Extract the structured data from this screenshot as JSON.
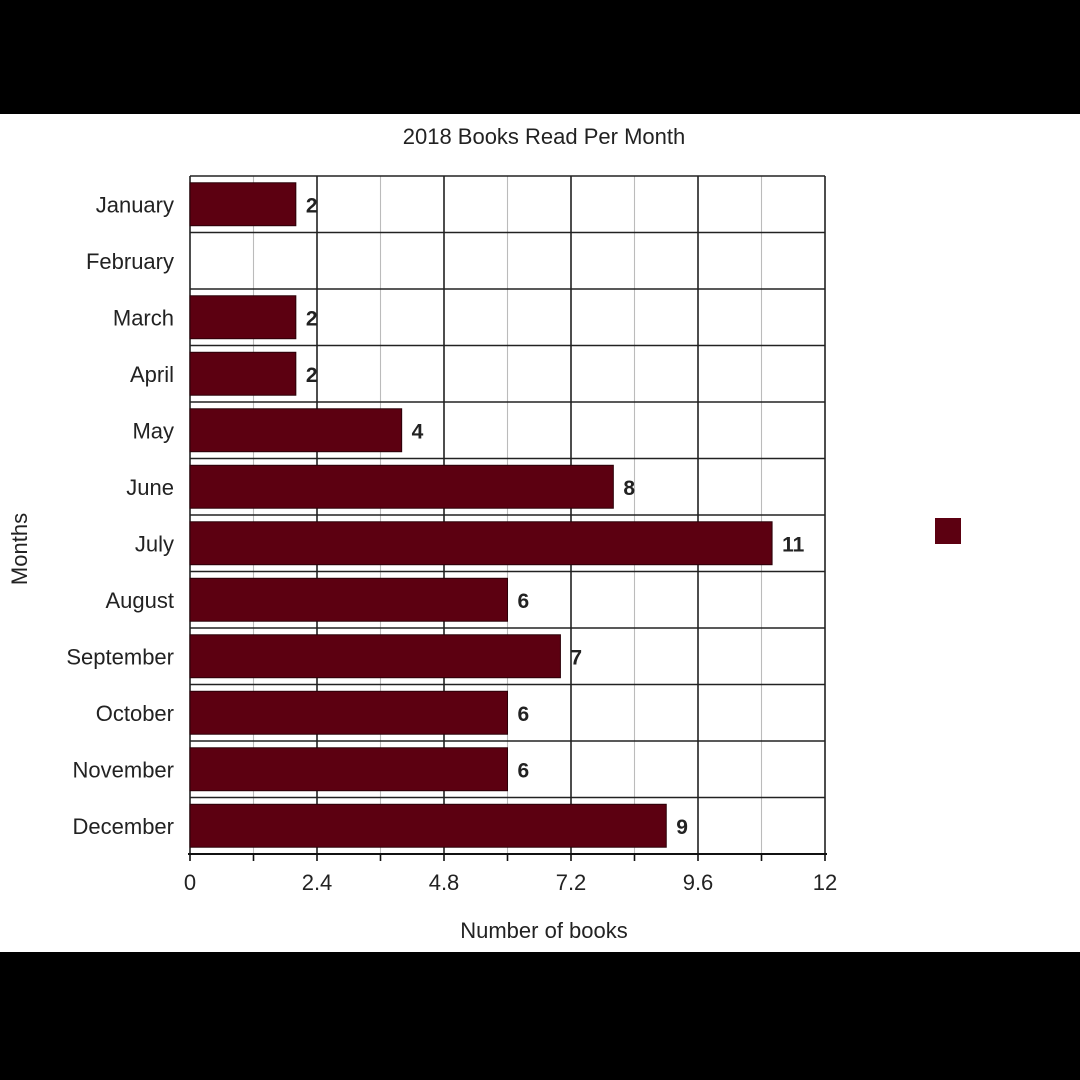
{
  "chart_data": {
    "type": "bar",
    "orientation": "horizontal",
    "title": "2018 Books Read Per Month",
    "xlabel": "Number of books",
    "ylabel": "Months",
    "categories": [
      "January",
      "February",
      "March",
      "April",
      "May",
      "June",
      "July",
      "August",
      "September",
      "October",
      "November",
      "December"
    ],
    "series": [
      {
        "values": [
          2,
          0,
          2,
          2,
          4,
          8,
          11,
          6,
          7,
          6,
          6,
          9
        ],
        "color": "#5c0011"
      }
    ],
    "data_labels": [
      "2",
      "",
      "2",
      "2",
      "4",
      "8",
      "11",
      "6",
      "7",
      "6",
      "6",
      "9"
    ],
    "xlim": [
      0,
      12
    ],
    "xticks": [
      "0",
      "2.4",
      "4.8",
      "7.2",
      "9.6",
      "12"
    ],
    "grid": true,
    "legend": "right",
    "bar_color": "#5c0011"
  }
}
